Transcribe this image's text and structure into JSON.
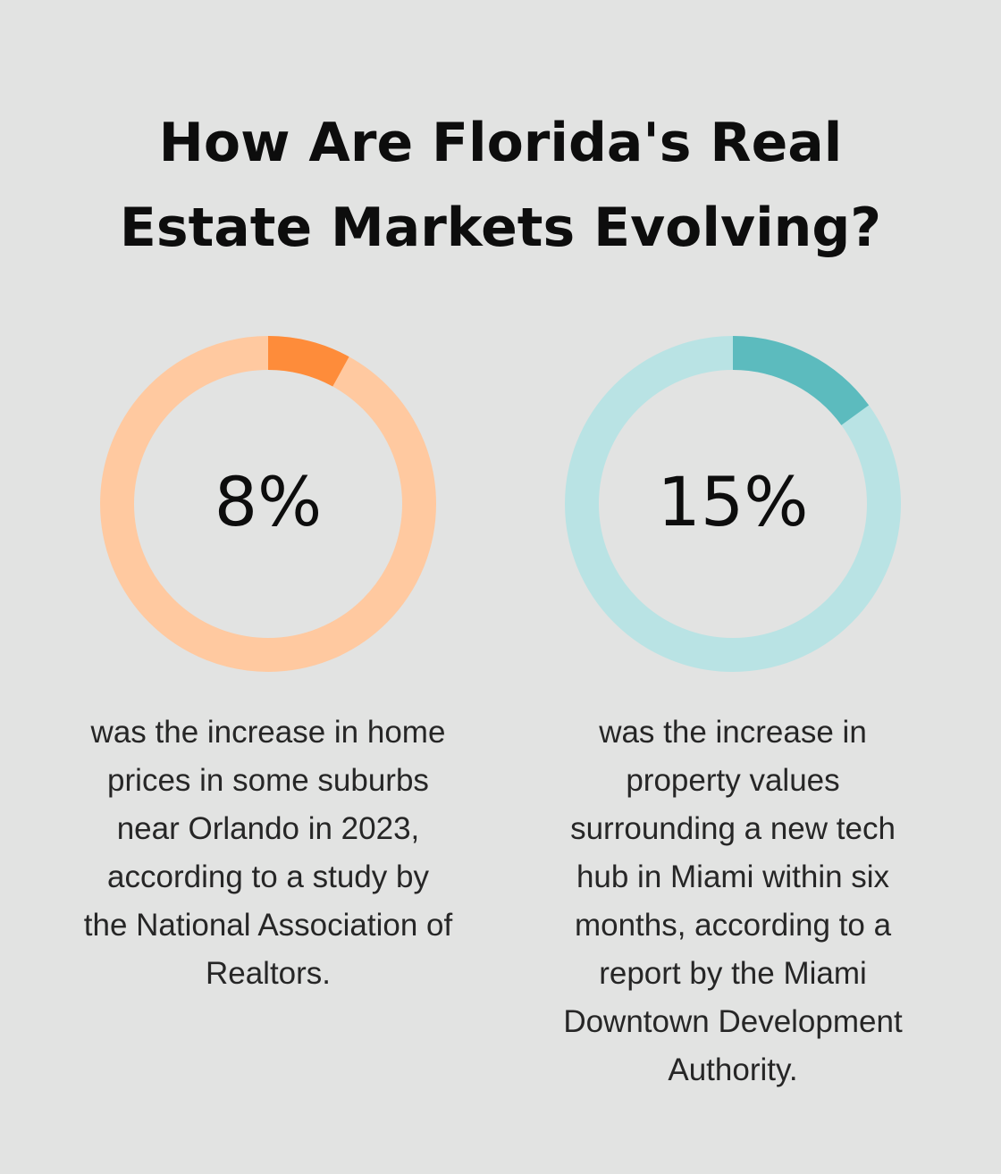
{
  "title": [
    "How Are Florida's Real",
    "Estate Markets Evolving?"
  ],
  "chart_data": [
    {
      "type": "donut",
      "values": [
        8
      ],
      "value_labels": [
        "8%"
      ],
      "color": "#fe8c3a",
      "track_color": "#ffc9a0",
      "caption": [
        "was the increase in home",
        "prices in some suburbs",
        "near Orlando in 2023,",
        "according to a study by",
        "the National Association of",
        "Realtors."
      ]
    },
    {
      "type": "donut",
      "values": [
        15
      ],
      "value_labels": [
        "15%"
      ],
      "color": "#5cbbbe",
      "track_color": "#b9e3e4",
      "caption": [
        "was the increase in",
        "property values",
        "surrounding a new tech",
        "hub in Miami within six",
        "months, according to a",
        "report by the Miami",
        "Downtown Development",
        "Authority."
      ]
    }
  ]
}
